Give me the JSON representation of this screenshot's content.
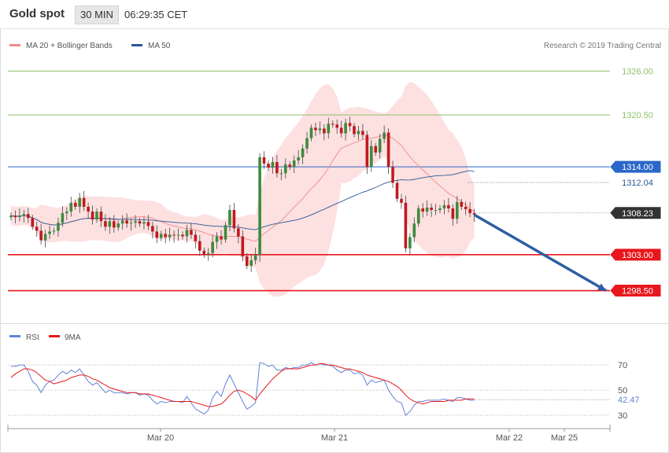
{
  "header": {
    "title": "Gold spot",
    "interval": "30 MIN",
    "time": "06:29:35 CET"
  },
  "legend": {
    "ma20_label": "MA 20 + Bollinger Bands",
    "ma50_label": "MA 50",
    "ma20_color": "#ef8a8a",
    "ma50_color": "#2b5797",
    "copyright": "Research © 2019 Trading Central"
  },
  "colors": {
    "bull": "#3d8a3d",
    "bear": "#c0191e",
    "band_fill": "#fde0e0",
    "support": "#e8171d",
    "pivot": "#2a67c9",
    "target_green": "#8fc06a",
    "arrow": "#2e5ea3",
    "rsi": "#6383d8",
    "rsi_ma": "#e8171d"
  },
  "chart_data": [
    {
      "type": "candlestick",
      "title": "Gold spot",
      "ylim": [
        1295.5,
        1328.2
      ],
      "x_labels": [
        "Mar 20",
        "Mar 21",
        "Mar 22",
        "Mar 25"
      ],
      "levels": [
        {
          "label": "1326.00",
          "value": 1326.0,
          "role": "resistance"
        },
        {
          "label": "1320.50",
          "value": 1320.5,
          "role": "resistance"
        },
        {
          "label": "1314.00",
          "value": 1314.0,
          "role": "pivot"
        },
        {
          "label": "1303.00",
          "value": 1303.0,
          "role": "support"
        },
        {
          "label": "1298.50",
          "value": 1298.5,
          "role": "support"
        }
      ],
      "markers": [
        {
          "label": "1312.04",
          "value": 1312.04,
          "series": "MA 50"
        },
        {
          "label": "1308.23",
          "value": 1308.23,
          "series": "last price"
        }
      ],
      "closes": [
        1307.9,
        1307.7,
        1307.9,
        1308.1,
        1307.6,
        1306.5,
        1306.0,
        1304.8,
        1305.6,
        1305.9,
        1306.0,
        1307.0,
        1308.2,
        1308.4,
        1309.5,
        1309.0,
        1310.1,
        1309.0,
        1308.4,
        1307.4,
        1308.4,
        1307.2,
        1306.5,
        1307.2,
        1306.4,
        1306.9,
        1307.3,
        1306.9,
        1307.0,
        1307.2,
        1306.9,
        1307.1,
        1306.6,
        1305.9,
        1305.1,
        1305.6,
        1305.2,
        1305.5,
        1305.4,
        1305.5,
        1305.3,
        1306.1,
        1305.5,
        1304.7,
        1303.5,
        1303.0,
        1303.2,
        1304.6,
        1305.3,
        1304.9,
        1306.7,
        1308.6,
        1306.3,
        1305.3,
        1302.8,
        1301.6,
        1302.3,
        1303.0,
        1315.2,
        1314.4,
        1313.9,
        1314.6,
        1313.2,
        1313.2,
        1314.3,
        1314.0,
        1314.8,
        1315.2,
        1316.3,
        1317.6,
        1318.9,
        1318.6,
        1318.8,
        1318.2,
        1319.4,
        1319.3,
        1318.9,
        1318.2,
        1319.5,
        1319.1,
        1318.1,
        1318.5,
        1318.0,
        1314.0,
        1316.6,
        1315.8,
        1317.5,
        1318.3,
        1314.0,
        1312.0,
        1310.0,
        1309.5,
        1303.8,
        1305.2,
        1306.9,
        1308.8,
        1308.4,
        1308.9,
        1308.6,
        1308.6,
        1308.8,
        1309.2,
        1308.8,
        1307.5,
        1309.6,
        1309.0,
        1308.7,
        1308.2,
        1308.0
      ]
    },
    {
      "type": "line",
      "title": "",
      "series": [
        {
          "name": "RSI",
          "color": "#6383d8"
        },
        {
          "name": "9MA",
          "color": "#e8171d"
        }
      ],
      "ylim": [
        25,
        82
      ],
      "y_ticks": [
        30,
        50,
        70
      ],
      "markers": [
        {
          "label": "42.47",
          "value": 42.47,
          "series": "RSI"
        }
      ],
      "rsi_values": [
        69,
        69,
        70,
        70,
        65,
        57,
        54,
        48,
        54,
        57,
        58,
        62,
        65,
        63,
        66,
        64,
        67,
        62,
        57,
        54,
        56,
        52,
        48,
        50,
        48,
        48,
        48,
        47,
        48,
        48,
        46,
        47,
        46,
        42,
        39,
        41,
        40,
        41,
        41,
        41,
        40,
        45,
        40,
        35,
        33,
        31,
        34,
        44,
        49,
        45,
        55,
        62,
        55,
        48,
        41,
        35,
        37,
        40,
        72,
        71,
        69,
        70,
        66,
        66,
        68,
        67,
        68,
        68,
        70,
        70,
        72,
        70,
        71,
        70,
        70,
        69,
        66,
        64,
        66,
        66,
        63,
        64,
        62,
        54,
        58,
        56,
        57,
        58,
        50,
        45,
        41,
        40,
        30,
        33,
        38,
        41,
        41,
        42,
        42,
        42,
        42,
        43,
        42,
        41,
        44,
        44,
        43,
        42,
        42
      ],
      "rsi_ma_values": [
        60,
        63,
        65,
        67,
        67,
        66,
        64,
        61,
        58,
        57,
        55,
        56,
        57,
        58,
        60,
        61,
        62,
        62,
        61,
        59,
        58,
        56,
        54,
        52,
        51,
        50,
        49,
        48,
        48,
        48,
        47,
        47,
        47,
        46,
        45,
        44,
        43,
        42,
        41,
        41,
        41,
        41,
        41,
        40,
        39,
        38,
        37,
        37,
        38,
        39,
        42,
        46,
        49,
        50,
        49,
        47,
        45,
        42,
        47,
        51,
        55,
        59,
        62,
        65,
        67,
        67,
        67,
        67,
        68,
        69,
        70,
        70,
        71,
        71,
        70,
        70,
        69,
        68,
        67,
        67,
        66,
        65,
        64,
        62,
        61,
        60,
        59,
        58,
        57,
        55,
        53,
        50,
        46,
        43,
        41,
        40,
        39,
        40,
        41,
        41,
        41,
        41,
        42,
        42,
        42,
        42,
        43,
        43,
        43
      ]
    }
  ]
}
